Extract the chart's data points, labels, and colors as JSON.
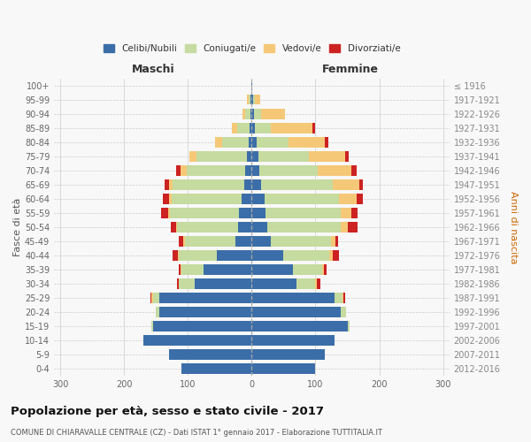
{
  "age_groups": [
    "100+",
    "95-99",
    "90-94",
    "85-89",
    "80-84",
    "75-79",
    "70-74",
    "65-69",
    "60-64",
    "55-59",
    "50-54",
    "45-49",
    "40-44",
    "35-39",
    "30-34",
    "25-29",
    "20-24",
    "15-19",
    "10-14",
    "5-9",
    "0-4"
  ],
  "birth_years": [
    "≤ 1916",
    "1917-1921",
    "1922-1926",
    "1927-1931",
    "1932-1936",
    "1937-1941",
    "1942-1946",
    "1947-1951",
    "1952-1956",
    "1957-1961",
    "1962-1966",
    "1967-1971",
    "1972-1976",
    "1977-1981",
    "1982-1986",
    "1987-1991",
    "1992-1996",
    "1997-2001",
    "2002-2006",
    "2007-2011",
    "2012-2016"
  ],
  "maschi_celibi": [
    1,
    2,
    2,
    3,
    5,
    8,
    10,
    12,
    16,
    20,
    22,
    25,
    55,
    75,
    90,
    145,
    145,
    155,
    170,
    130,
    110
  ],
  "maschi_coniugati": [
    0,
    3,
    8,
    20,
    42,
    78,
    92,
    112,
    110,
    108,
    95,
    80,
    60,
    35,
    25,
    10,
    5,
    3,
    0,
    0,
    0
  ],
  "maschi_vedovi": [
    0,
    2,
    5,
    8,
    10,
    12,
    10,
    6,
    4,
    3,
    2,
    2,
    1,
    1,
    0,
    3,
    0,
    0,
    0,
    0,
    0
  ],
  "maschi_divorziati": [
    0,
    0,
    0,
    0,
    0,
    0,
    6,
    6,
    9,
    11,
    8,
    7,
    8,
    3,
    2,
    1,
    0,
    0,
    0,
    0,
    0
  ],
  "femmine_celibi": [
    1,
    2,
    3,
    5,
    8,
    10,
    12,
    15,
    20,
    22,
    25,
    30,
    50,
    65,
    70,
    130,
    140,
    150,
    130,
    115,
    100
  ],
  "femmine_coniugati": [
    0,
    3,
    12,
    25,
    50,
    80,
    92,
    112,
    117,
    117,
    115,
    95,
    72,
    45,
    30,
    12,
    8,
    3,
    0,
    0,
    0
  ],
  "femmine_vedovi": [
    0,
    8,
    37,
    65,
    57,
    57,
    52,
    42,
    27,
    17,
    11,
    6,
    5,
    3,
    2,
    2,
    0,
    0,
    0,
    0,
    0
  ],
  "femmine_divorziati": [
    0,
    0,
    0,
    5,
    5,
    5,
    8,
    5,
    10,
    10,
    15,
    5,
    10,
    5,
    5,
    2,
    0,
    0,
    0,
    0,
    0
  ],
  "colors": {
    "celibi": "#3b6ea8",
    "coniugati": "#c5dba0",
    "vedovi": "#f5c878",
    "divorziati": "#cc2222"
  },
  "title": "Popolazione per età, sesso e stato civile - 2017",
  "subtitle": "COMUNE DI CHIARAVALLE CENTRALE (CZ) - Dati ISTAT 1° gennaio 2017 - Elaborazione TUTTITALIA.IT",
  "ylabel_left": "Fasce di età",
  "ylabel_right": "Anni di nascita",
  "xlabel_maschi": "Maschi",
  "xlabel_femmine": "Femmine",
  "xlim": 310,
  "bg_color": "#f8f8f8",
  "grid_color": "#cccccc"
}
